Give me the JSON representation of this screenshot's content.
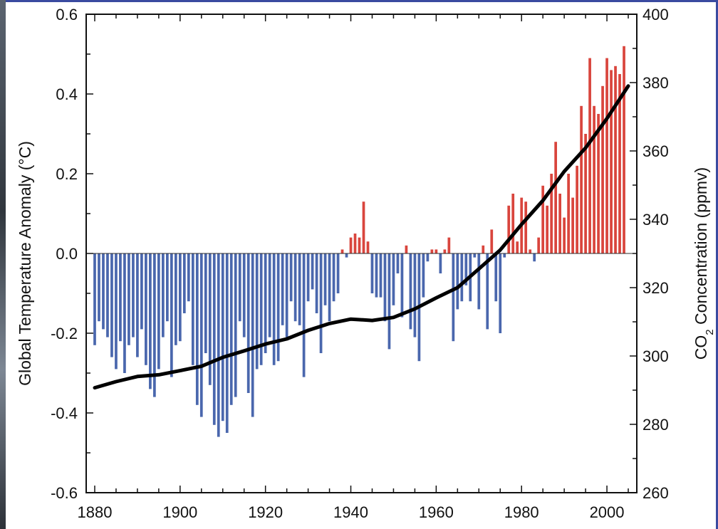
{
  "chart_data": {
    "type": "bar",
    "x_start": 1880,
    "years_note": "",
    "colors": {
      "negative": "#4a67ad",
      "positive": "#d9453d",
      "co2_line": "#000000"
    },
    "anomaly": [
      -0.23,
      -0.17,
      -0.19,
      -0.21,
      -0.26,
      -0.29,
      -0.22,
      -0.3,
      -0.23,
      -0.21,
      -0.26,
      -0.19,
      -0.28,
      -0.34,
      -0.36,
      -0.29,
      -0.21,
      -0.17,
      -0.31,
      -0.23,
      -0.22,
      -0.15,
      -0.12,
      -0.28,
      -0.38,
      -0.41,
      -0.25,
      -0.33,
      -0.43,
      -0.46,
      -0.42,
      -0.45,
      -0.38,
      -0.36,
      -0.17,
      -0.21,
      -0.35,
      -0.41,
      -0.29,
      -0.28,
      -0.25,
      -0.21,
      -0.28,
      -0.27,
      -0.18,
      -0.21,
      -0.12,
      -0.17,
      -0.18,
      -0.31,
      -0.12,
      -0.09,
      -0.15,
      -0.25,
      -0.13,
      -0.17,
      -0.12,
      -0.1,
      0.01,
      -0.01,
      0.04,
      0.05,
      0.04,
      0.13,
      0.03,
      -0.1,
      -0.11,
      -0.11,
      -0.17,
      -0.24,
      -0.13,
      -0.05,
      -0.16,
      0.02,
      -0.19,
      -0.21,
      -0.27,
      -0.11,
      -0.02,
      0.01,
      0.01,
      -0.05,
      0.01,
      0.04,
      -0.22,
      -0.14,
      -0.12,
      -0.08,
      -0.12,
      -0.01,
      -0.14,
      0.02,
      -0.19,
      0.06,
      -0.12,
      -0.2,
      -0.01,
      0.12,
      0.15,
      0.03,
      0.14,
      0.13,
      0.01,
      -0.02,
      0.04,
      0.17,
      0.12,
      0.2,
      0.28,
      0.15,
      0.09,
      0.2,
      0.14,
      0.22,
      0.37,
      0.3,
      0.49,
      0.37,
      0.35,
      0.42,
      0.49,
      0.46,
      0.47,
      0.45,
      0.52
    ],
    "co2": {
      "name": "",
      "points": [
        [
          1880,
          290.7
        ],
        [
          1885,
          292.5
        ],
        [
          1890,
          294.0
        ],
        [
          1895,
          294.5
        ],
        [
          1900,
          295.7
        ],
        [
          1905,
          297.0
        ],
        [
          1910,
          299.6
        ],
        [
          1915,
          301.5
        ],
        [
          1920,
          303.5
        ],
        [
          1925,
          305.0
        ],
        [
          1930,
          307.5
        ],
        [
          1935,
          309.5
        ],
        [
          1940,
          310.8
        ],
        [
          1945,
          310.4
        ],
        [
          1950,
          311.3
        ],
        [
          1955,
          313.8
        ],
        [
          1960,
          317.0
        ],
        [
          1965,
          320.0
        ],
        [
          1970,
          325.5
        ],
        [
          1975,
          331.0
        ],
        [
          1980,
          338.5
        ],
        [
          1985,
          345.5
        ],
        [
          1990,
          354.0
        ],
        [
          1995,
          360.9
        ],
        [
          2000,
          369.5
        ],
        [
          2005,
          379.0
        ]
      ]
    },
    "x_ticks": [
      "1880",
      "1900",
      "1920",
      "1940",
      "1960",
      "1980",
      "2000"
    ],
    "y_left_ticks": [
      "0.6",
      "0.4",
      "0.2",
      "0.0",
      "-0.2",
      "-0.4",
      "-0.6"
    ],
    "y_right_ticks": [
      "400",
      "380",
      "360",
      "340",
      "320",
      "300",
      "280",
      "260"
    ],
    "ylim_left": [
      -0.6,
      0.6
    ],
    "ylim_right": [
      260,
      400
    ],
    "xlim": [
      1878,
      2007
    ],
    "ylabel_left": "Global Temperature Anomaly (°C)",
    "ylabel_right_pre": "CO",
    "ylabel_right_sub": "2",
    "ylabel_right_post": " Concentration (ppmv)",
    "xlabel": "",
    "title": ""
  }
}
